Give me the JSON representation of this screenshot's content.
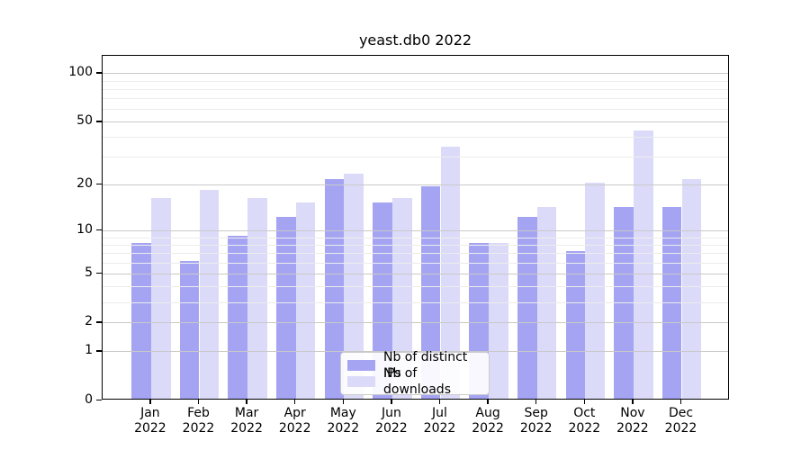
{
  "title": "yeast.db0 2022",
  "chart_data": {
    "type": "bar",
    "title": "yeast.db0 2022",
    "xlabel": "",
    "ylabel": "",
    "categories": [
      "Jan 2022",
      "Feb 2022",
      "Mar 2022",
      "Apr 2022",
      "May 2022",
      "Jun 2022",
      "Jul 2022",
      "Aug 2022",
      "Sep 2022",
      "Oct 2022",
      "Nov 2022",
      "Dec 2022"
    ],
    "category_line1": [
      "Jan",
      "Feb",
      "Mar",
      "Apr",
      "May",
      "Jun",
      "Jul",
      "Aug",
      "Sep",
      "Oct",
      "Nov",
      "Dec"
    ],
    "category_line2": [
      "2022",
      "2022",
      "2022",
      "2022",
      "2022",
      "2022",
      "2022",
      "2022",
      "2022",
      "2022",
      "2022",
      "2022"
    ],
    "series": [
      {
        "name": "Nb of distinct IPs",
        "color": "#a4a4f3",
        "values": [
          8,
          6,
          9,
          12,
          21,
          15,
          19,
          8,
          12,
          7,
          14,
          14
        ]
      },
      {
        "name": "Nb of downloads",
        "color": "#dbdbf9",
        "values": [
          16,
          18,
          16,
          15,
          23,
          16,
          34,
          8,
          14,
          20,
          43,
          21
        ]
      }
    ],
    "y_scale": "log1p",
    "y_ticks": [
      0,
      1,
      2,
      5,
      10,
      20,
      50,
      100
    ],
    "y_minor_gridlines": [
      3,
      4,
      6,
      7,
      8,
      9,
      30,
      40,
      60,
      70,
      80,
      90
    ],
    "ylim": [
      0,
      128
    ],
    "grid": true,
    "legend_position": "lower center",
    "colors": {
      "major_grid": "#c9c9c9",
      "minor_grid": "#ececec",
      "axis": "#000000",
      "background": "#ffffff"
    }
  }
}
